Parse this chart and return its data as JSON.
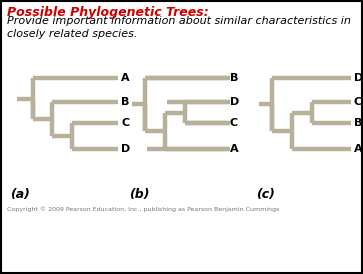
{
  "title_bold": "Possible Phylogenetic Trees:",
  "subtitle": "Provide important information about similar characteristics in\nclosely related species.",
  "title_color": "#cc0000",
  "subtitle_color": "#000000",
  "bg_color": "#ffffff",
  "border_color": "#000000",
  "tree_color": "#b8b09a",
  "tree_lw": 3.2,
  "label_color": "#000000",
  "label_fontsize": 8,
  "tree_a_label": "(a)",
  "tree_b_label": "(b)",
  "tree_c_label": "(c)",
  "copyright": "Copyright © 2009 Pearson Education, Inc., publishing as Pearson Benjamin Cummings",
  "copyright_fontsize": 4.5,
  "title_fontsize": 9,
  "subtitle_fontsize": 8,
  "abc_fontsize": 9
}
